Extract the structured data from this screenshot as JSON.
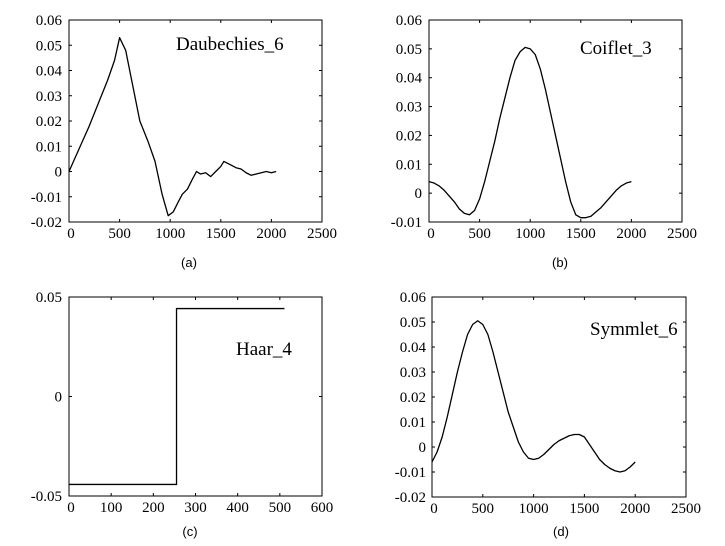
{
  "chart_data": [
    {
      "id": "a",
      "type": "line",
      "title": "Daubechies_6",
      "caption": "(a)",
      "xlim": [
        0,
        2500
      ],
      "ylim": [
        -0.02,
        0.06
      ],
      "xticks": [
        0,
        500,
        1000,
        1500,
        2000,
        2500
      ],
      "yticks": [
        -0.02,
        -0.01,
        0,
        0.01,
        0.02,
        0.03,
        0.04,
        0.05,
        0.06
      ],
      "xtick_labels": [
        "0",
        "500",
        "1000",
        "1500",
        "2000",
        "2500"
      ],
      "ytick_labels": [
        "-0.02",
        "-0.01",
        "0",
        "0.01",
        "0.02",
        "0.03",
        "0.04",
        "0.05",
        "0.06"
      ],
      "x": [
        0,
        100,
        200,
        300,
        380,
        450,
        500,
        560,
        620,
        700,
        780,
        850,
        920,
        980,
        1030,
        1080,
        1120,
        1170,
        1220,
        1260,
        1300,
        1350,
        1400,
        1450,
        1500,
        1530,
        1580,
        1650,
        1700,
        1750,
        1800,
        1850,
        1900,
        1950,
        2000,
        2047
      ],
      "y": [
        0.0,
        0.009,
        0.018,
        0.028,
        0.036,
        0.044,
        0.053,
        0.048,
        0.036,
        0.02,
        0.012,
        0.004,
        -0.009,
        -0.0175,
        -0.016,
        -0.012,
        -0.009,
        -0.007,
        -0.003,
        0.0,
        -0.001,
        -0.0005,
        -0.002,
        0.0,
        0.002,
        0.004,
        0.003,
        0.0015,
        0.001,
        -0.0005,
        -0.0015,
        -0.001,
        -0.0005,
        0.0,
        -0.0005,
        0.0
      ]
    },
    {
      "id": "b",
      "type": "line",
      "title": "Coiflet_3",
      "caption": "(b)",
      "xlim": [
        0,
        2500
      ],
      "ylim": [
        -0.01,
        0.06
      ],
      "xticks": [
        0,
        500,
        1000,
        1500,
        2000,
        2500
      ],
      "yticks": [
        -0.01,
        0,
        0.01,
        0.02,
        0.03,
        0.04,
        0.05,
        0.06
      ],
      "xtick_labels": [
        "0",
        "500",
        "1000",
        "1500",
        "2000",
        "2500"
      ],
      "ytick_labels": [
        "-0.01",
        "0",
        "0.01",
        "0.02",
        "0.03",
        "0.04",
        "0.05",
        "0.06"
      ],
      "x": [
        0,
        50,
        100,
        150,
        200,
        250,
        300,
        350,
        400,
        450,
        500,
        550,
        600,
        650,
        700,
        750,
        800,
        850,
        900,
        950,
        1000,
        1050,
        1100,
        1150,
        1200,
        1250,
        1300,
        1350,
        1400,
        1450,
        1500,
        1550,
        1600,
        1650,
        1700,
        1750,
        1800,
        1850,
        1900,
        1950,
        2000
      ],
      "y": [
        0.004,
        0.0035,
        0.0025,
        0.001,
        -0.001,
        -0.003,
        -0.0055,
        -0.007,
        -0.0075,
        -0.006,
        -0.002,
        0.004,
        0.011,
        0.018,
        0.026,
        0.033,
        0.04,
        0.046,
        0.049,
        0.0505,
        0.05,
        0.048,
        0.043,
        0.036,
        0.028,
        0.02,
        0.012,
        0.004,
        -0.003,
        -0.0075,
        -0.0085,
        -0.0085,
        -0.008,
        -0.0065,
        -0.005,
        -0.003,
        -0.001,
        0.001,
        0.0025,
        0.0035,
        0.004
      ]
    },
    {
      "id": "c",
      "type": "line",
      "title": "Haar_4",
      "caption": "(c)",
      "xlim": [
        0,
        600
      ],
      "ylim": [
        -0.05,
        0.05
      ],
      "xticks": [
        0,
        100,
        200,
        300,
        400,
        500,
        600
      ],
      "yticks": [
        -0.05,
        0,
        0.05
      ],
      "xtick_labels": [
        "0",
        "100",
        "200",
        "300",
        "400",
        "500",
        "600"
      ],
      "ytick_labels": [
        "-0.05",
        "0",
        "0.05"
      ],
      "x": [
        0,
        255,
        255,
        511
      ],
      "y": [
        -0.0442,
        -0.0442,
        0.0442,
        0.0442
      ]
    },
    {
      "id": "d",
      "type": "line",
      "title": "Symmlet_6",
      "caption": "(d)",
      "xlim": [
        0,
        2500
      ],
      "ylim": [
        -0.02,
        0.06
      ],
      "xticks": [
        0,
        500,
        1000,
        1500,
        2000,
        2500
      ],
      "yticks": [
        -0.02,
        -0.01,
        0,
        0.01,
        0.02,
        0.03,
        0.04,
        0.05,
        0.06
      ],
      "xtick_labels": [
        "0",
        "500",
        "1000",
        "1500",
        "2000",
        "2500"
      ],
      "ytick_labels": [
        "-0.02",
        "-0.01",
        "0",
        "0.01",
        "0.02",
        "0.03",
        "0.04",
        "0.05",
        "0.06"
      ],
      "x": [
        0,
        50,
        100,
        150,
        200,
        250,
        300,
        350,
        400,
        450,
        500,
        550,
        600,
        650,
        700,
        750,
        800,
        850,
        900,
        950,
        1000,
        1050,
        1100,
        1150,
        1200,
        1250,
        1300,
        1350,
        1400,
        1450,
        1500,
        1550,
        1600,
        1650,
        1700,
        1750,
        1800,
        1850,
        1900,
        1950,
        2000
      ],
      "y": [
        -0.006,
        -0.002,
        0.004,
        0.012,
        0.021,
        0.03,
        0.038,
        0.045,
        0.049,
        0.0505,
        0.049,
        0.045,
        0.038,
        0.03,
        0.022,
        0.014,
        0.008,
        0.002,
        -0.002,
        -0.0045,
        -0.005,
        -0.0045,
        -0.003,
        -0.001,
        0.001,
        0.0025,
        0.0035,
        0.0045,
        0.005,
        0.005,
        0.004,
        0.001,
        -0.002,
        -0.005,
        -0.007,
        -0.0085,
        -0.0095,
        -0.01,
        -0.0095,
        -0.008,
        -0.006
      ]
    }
  ]
}
